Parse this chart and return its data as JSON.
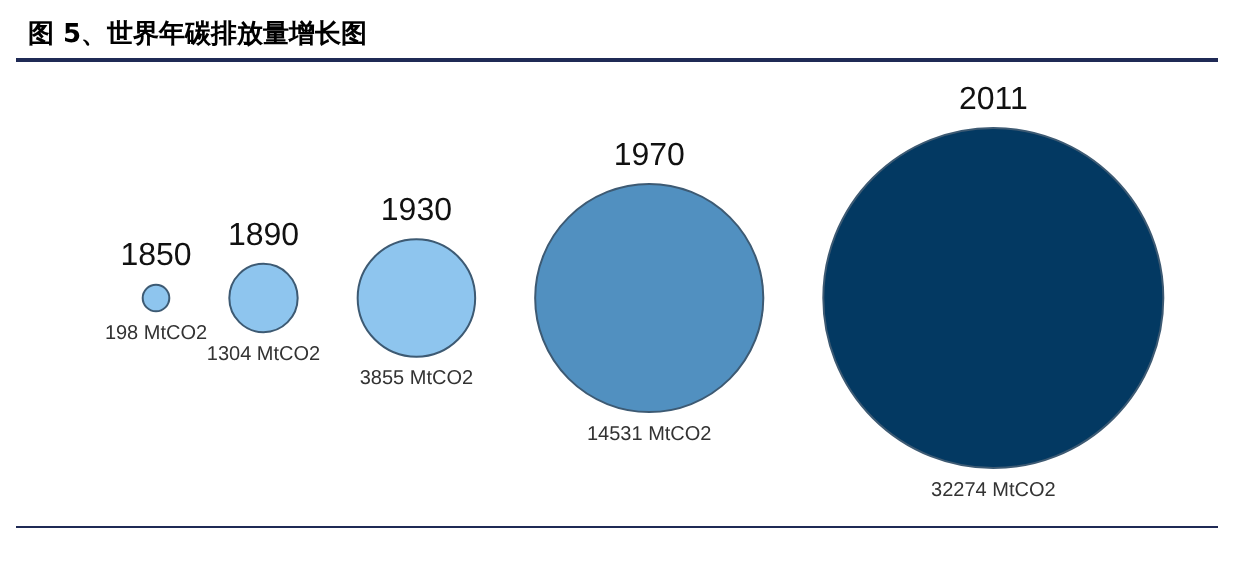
{
  "chart_data": {
    "type": "other",
    "title": "图 5、世界年碳排放量增长图",
    "categories": [
      "1850",
      "1890",
      "1930",
      "1970",
      "2011"
    ],
    "values": [
      198,
      1304,
      3855,
      14531,
      32274
    ],
    "value_labels": [
      "198 MtCO2",
      "1304 MtCO2",
      "3855 MtCO2",
      "14531 MtCO2",
      "32274 MtCO2"
    ],
    "colors": [
      "#8ec5ee",
      "#8ec5ee",
      "#8ec5ee",
      "#5190c0",
      "#033962"
    ]
  }
}
